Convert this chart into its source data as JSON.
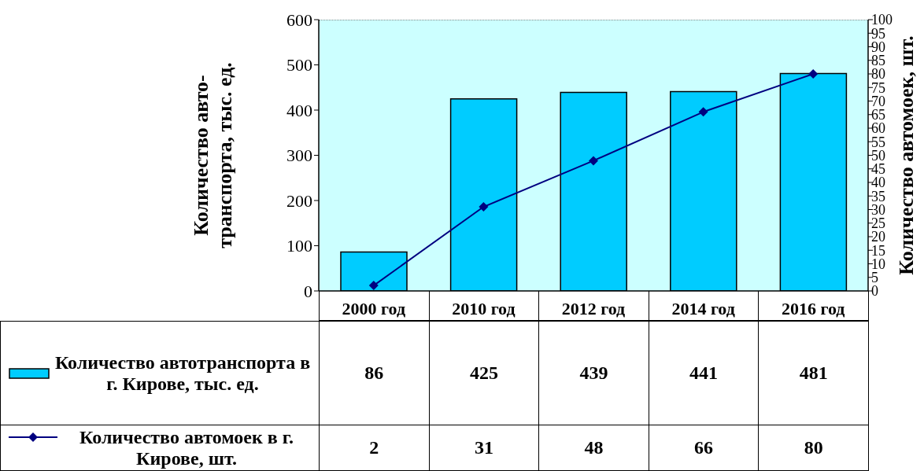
{
  "chart_data": {
    "type": "bar",
    "ylabel": "Количество авто-\nтранспорта, тыс. ед.",
    "y2label": "Количество автомоек, шт.",
    "categories": [
      "2000 год",
      "2010 год",
      "2012 год",
      "2014 год",
      "2016 год"
    ],
    "series": [
      {
        "name": "Количество автотранспорта в г. Кирове, тыс. ед.",
        "color": "#00ccff",
        "values": [
          86,
          425,
          439,
          441,
          481
        ]
      },
      {
        "name": "Количество автомоек в г. Кирове, шт.",
        "type": "line",
        "axis": "y2",
        "color": "#000080",
        "marker": "diamond",
        "values": [
          2,
          31,
          48,
          66,
          80
        ]
      }
    ],
    "ylim": [
      0,
      600
    ],
    "yticks": [
      0,
      100,
      200,
      300,
      400,
      500,
      600
    ],
    "y2lim": [
      0,
      100
    ],
    "y2ticks": [
      0,
      5,
      10,
      15,
      20,
      25,
      30,
      35,
      40,
      45,
      50,
      55,
      60,
      65,
      70,
      75,
      80,
      85,
      90,
      95,
      100
    ],
    "data_labels": true,
    "legend": "bottom",
    "grid": false
  }
}
